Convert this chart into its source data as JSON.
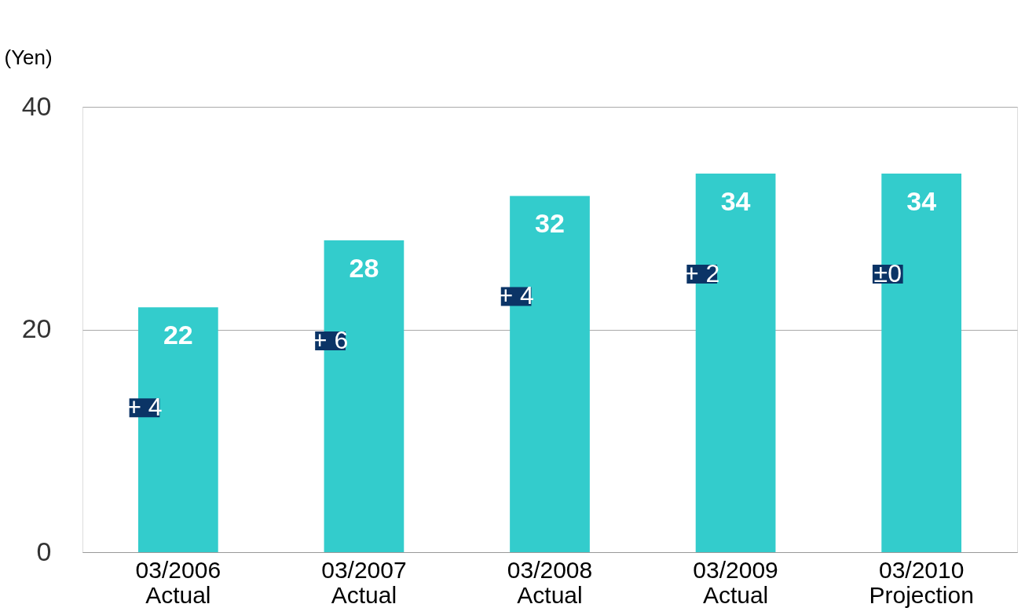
{
  "chart_data": {
    "type": "bar",
    "ylabel": "(Yen)",
    "categories": [
      "03/2006\nActual",
      "03/2007\nActual",
      "03/2008\nActual",
      "03/2009\nActual",
      "03/2010\nProjection"
    ],
    "values": [
      22,
      28,
      32,
      34,
      34
    ],
    "color": "#33cccc",
    "data_labels": true,
    "ylim": [
      0,
      40
    ],
    "yticks": [
      0,
      20,
      40
    ],
    "grid": "y",
    "annotations": [
      "+ 4",
      "+ 6",
      "+ 4",
      "+ 2",
      "±0"
    ]
  }
}
